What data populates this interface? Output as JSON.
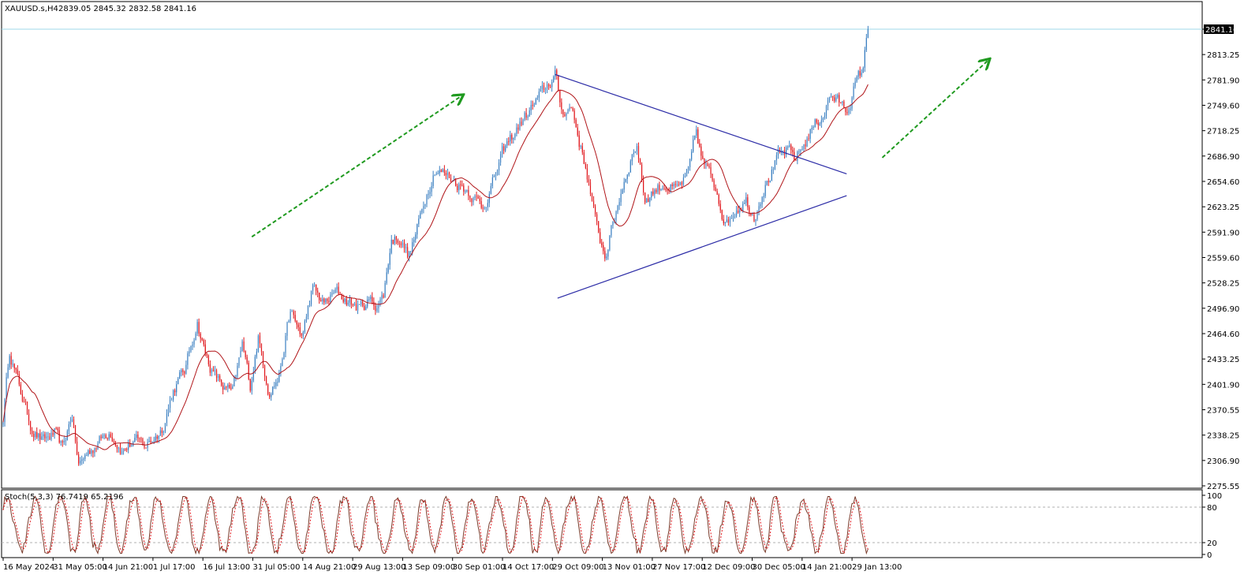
{
  "header": {
    "symbol": "XAUUSD.s,H4",
    "ohlc": "2839.05 2845.32 2832.58 2841.16"
  },
  "colors": {
    "bull": "#3a7fc1",
    "bear": "#e0161b",
    "ma": "#b01418",
    "trendline": "#2a2aa6",
    "arrow": "#1f9a1f",
    "price_line": "#9fd8e8",
    "stoch_main": "#7a3a2a",
    "stoch_level": "#b0b0b0",
    "frame": "#000000"
  },
  "chart_data": [
    {
      "type": "candlestick",
      "title": "XAUUSD.s,H4",
      "ylim": [
        2275.55,
        2845.32
      ],
      "y_ticks": [
        "2841.16",
        "2813.25",
        "2781.90",
        "2749.60",
        "2718.25",
        "2686.90",
        "2654.60",
        "2623.25",
        "2591.90",
        "2559.60",
        "2528.25",
        "2496.90",
        "2464.60",
        "2433.25",
        "2401.90",
        "2370.55",
        "2338.25",
        "2306.90",
        "2275.55"
      ],
      "current_price": "2841.16",
      "x_ticks": [
        "16 May 2024",
        "31 May 05:00",
        "14 Jun 21:00",
        "1 Jul 17:00",
        "16 Jul 13:00",
        "31 Jul 05:00",
        "14 Aug 21:00",
        "29 Aug 13:00",
        "13 Sep 09:00",
        "30 Sep 01:00",
        "14 Oct 17:00",
        "29 Oct 09:00",
        "13 Nov 01:00",
        "27 Nov 17:00",
        "12 Dec 09:00",
        "30 Dec 05:00",
        "14 Jan 21:00",
        "29 Jan 13:00"
      ],
      "anchors": [
        {
          "t": 0.0,
          "p": 2360
        },
        {
          "t": 0.008,
          "p": 2445
        },
        {
          "t": 0.02,
          "p": 2400
        },
        {
          "t": 0.035,
          "p": 2350
        },
        {
          "t": 0.05,
          "p": 2330
        },
        {
          "t": 0.065,
          "p": 2340
        },
        {
          "t": 0.075,
          "p": 2320
        },
        {
          "t": 0.087,
          "p": 2365
        },
        {
          "t": 0.095,
          "p": 2300
        },
        {
          "t": 0.105,
          "p": 2315
        },
        {
          "t": 0.12,
          "p": 2330
        },
        {
          "t": 0.135,
          "p": 2345
        },
        {
          "t": 0.15,
          "p": 2320
        },
        {
          "t": 0.165,
          "p": 2330
        },
        {
          "t": 0.18,
          "p": 2325
        },
        {
          "t": 0.2,
          "p": 2345
        },
        {
          "t": 0.215,
          "p": 2395
        },
        {
          "t": 0.23,
          "p": 2420
        },
        {
          "t": 0.245,
          "p": 2480
        },
        {
          "t": 0.255,
          "p": 2440
        },
        {
          "t": 0.265,
          "p": 2415
        },
        {
          "t": 0.28,
          "p": 2395
        },
        {
          "t": 0.29,
          "p": 2390
        },
        {
          "t": 0.302,
          "p": 2450
        },
        {
          "t": 0.312,
          "p": 2400
        },
        {
          "t": 0.322,
          "p": 2460
        },
        {
          "t": 0.335,
          "p": 2395
        },
        {
          "t": 0.348,
          "p": 2410
        },
        {
          "t": 0.362,
          "p": 2490
        },
        {
          "t": 0.378,
          "p": 2460
        },
        {
          "t": 0.39,
          "p": 2520
        },
        {
          "t": 0.405,
          "p": 2500
        },
        {
          "t": 0.42,
          "p": 2515
        },
        {
          "t": 0.435,
          "p": 2505
        },
        {
          "t": 0.45,
          "p": 2495
        },
        {
          "t": 0.462,
          "p": 2505
        },
        {
          "t": 0.47,
          "p": 2500
        },
        {
          "t": 0.48,
          "p": 2510
        },
        {
          "t": 0.49,
          "p": 2580
        },
        {
          "t": 0.5,
          "p": 2585
        },
        {
          "t": 0.512,
          "p": 2560
        },
        {
          "t": 0.522,
          "p": 2590
        },
        {
          "t": 0.532,
          "p": 2630
        },
        {
          "t": 0.545,
          "p": 2670
        },
        {
          "t": 0.56,
          "p": 2660
        },
        {
          "t": 0.575,
          "p": 2650
        },
        {
          "t": 0.59,
          "p": 2640
        },
        {
          "t": 0.605,
          "p": 2620
        },
        {
          "t": 0.618,
          "p": 2650
        },
        {
          "t": 0.632,
          "p": 2690
        },
        {
          "t": 0.65,
          "p": 2720
        },
        {
          "t": 0.665,
          "p": 2740
        },
        {
          "t": 0.68,
          "p": 2760
        },
        {
          "t": 0.69,
          "p": 2775
        },
        {
          "t": 0.697,
          "p": 2785
        },
        {
          "t": 0.705,
          "p": 2740
        },
        {
          "t": 0.718,
          "p": 2745
        },
        {
          "t": 0.728,
          "p": 2700
        },
        {
          "t": 0.738,
          "p": 2660
        },
        {
          "t": 0.748,
          "p": 2600
        },
        {
          "t": 0.76,
          "p": 2560
        },
        {
          "t": 0.77,
          "p": 2600
        },
        {
          "t": 0.78,
          "p": 2640
        },
        {
          "t": 0.792,
          "p": 2680
        },
        {
          "t": 0.8,
          "p": 2700
        },
        {
          "t": 0.81,
          "p": 2630
        },
        {
          "t": 0.82,
          "p": 2640
        },
        {
          "t": 0.835,
          "p": 2650
        },
        {
          "t": 0.85,
          "p": 2640
        },
        {
          "t": 0.865,
          "p": 2660
        },
        {
          "t": 0.875,
          "p": 2715
        },
        {
          "t": 0.882,
          "p": 2680
        },
        {
          "t": 0.892,
          "p": 2660
        },
        {
          "t": 0.902,
          "p": 2640
        },
        {
          "t": 0.912,
          "p": 2600
        },
        {
          "t": 0.925,
          "p": 2620
        },
        {
          "t": 0.938,
          "p": 2630
        },
        {
          "t": 0.948,
          "p": 2610
        },
        {
          "t": 0.958,
          "p": 2640
        },
        {
          "t": 0.968,
          "p": 2660
        },
        {
          "t": 0.978,
          "p": 2680
        },
        {
          "t": 0.99,
          "p": 2690
        },
        {
          "t": 1.0,
          "p": 2680
        },
        {
          "t": 1.012,
          "p": 2700
        },
        {
          "t": 1.022,
          "p": 2720
        },
        {
          "t": 1.035,
          "p": 2735
        },
        {
          "t": 1.045,
          "p": 2760
        },
        {
          "t": 1.055,
          "p": 2750
        },
        {
          "t": 1.065,
          "p": 2740
        },
        {
          "t": 1.075,
          "p": 2770
        },
        {
          "t": 1.085,
          "p": 2790
        },
        {
          "t": 1.092,
          "p": 2841
        }
      ],
      "trendlines": [
        {
          "name": "upper-resistance",
          "from": {
            "t": 0.697,
            "p": 2785
          },
          "to": {
            "t": 1.065,
            "p": 2662
          }
        },
        {
          "name": "lower-support",
          "from": {
            "t": 0.7,
            "p": 2508
          },
          "to": {
            "t": 1.065,
            "p": 2635
          }
        }
      ],
      "arrows": [
        {
          "from": {
            "t": 0.314,
            "p": 2584
          },
          "to": {
            "t": 0.578,
            "p": 2758
          }
        },
        {
          "from": {
            "t": 1.11,
            "p": 2682
          },
          "to": {
            "t": 1.243,
            "p": 2802
          }
        }
      ]
    },
    {
      "type": "line",
      "title": "Stoch(5,3,3) 76.7419 65.2196",
      "ylim": [
        0,
        100
      ],
      "y_ticks": [
        "100",
        "80",
        "20",
        "0"
      ],
      "levels": [
        80,
        20
      ]
    }
  ]
}
